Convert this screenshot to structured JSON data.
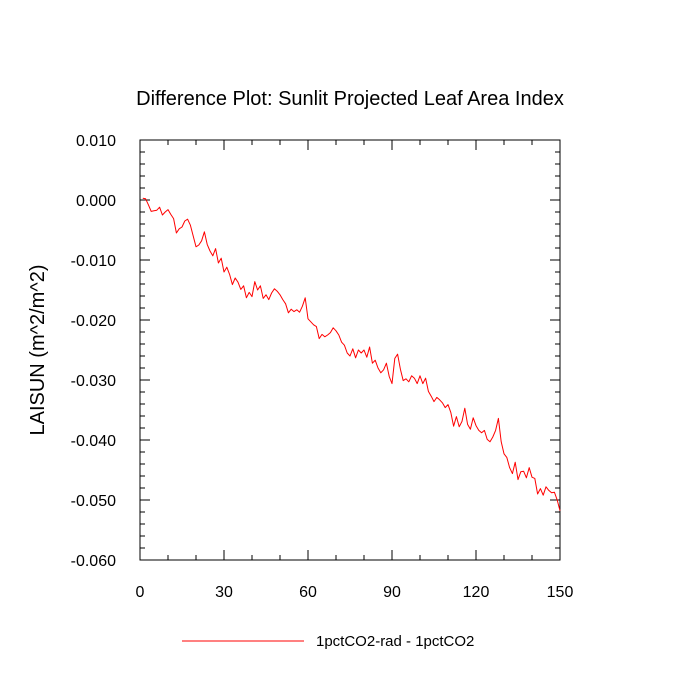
{
  "chart_data": {
    "type": "line",
    "title": "Difference Plot: Sunlit Projected Leaf Area Index",
    "ylabel": "LAISUN  (m^2/m^2)",
    "xlabel": "",
    "xlim": [
      0,
      150
    ],
    "ylim": [
      -0.06,
      0.01
    ],
    "xticks": [
      0,
      30,
      60,
      90,
      120,
      150
    ],
    "xtick_labels": [
      "0",
      "30",
      "60",
      "90",
      "120",
      "150"
    ],
    "yticks": [
      0.01,
      0.0,
      -0.01,
      -0.02,
      -0.03,
      -0.04,
      -0.05,
      -0.06
    ],
    "ytick_labels": [
      "0.010",
      "0.000",
      "-0.010",
      "-0.020",
      "-0.030",
      "-0.040",
      "-0.050",
      "-0.060"
    ],
    "grid": false,
    "legend_position": "bottom-center",
    "series": [
      {
        "name": "1pctCO2-rad - 1pctCO2",
        "color": "#ff0000",
        "x": [
          1,
          2,
          3,
          4,
          5,
          6,
          7,
          8,
          9,
          10,
          11,
          12,
          13,
          14,
          15,
          16,
          17,
          18,
          19,
          20,
          21,
          22,
          23,
          24,
          25,
          26,
          27,
          28,
          29,
          30,
          31,
          32,
          33,
          34,
          35,
          36,
          37,
          38,
          39,
          40,
          41,
          42,
          43,
          44,
          45,
          46,
          47,
          48,
          49,
          50,
          51,
          52,
          53,
          54,
          55,
          56,
          57,
          58,
          59,
          60,
          61,
          62,
          63,
          64,
          65,
          66,
          67,
          68,
          69,
          70,
          71,
          72,
          73,
          74,
          75,
          76,
          77,
          78,
          79,
          80,
          81,
          82,
          83,
          84,
          85,
          86,
          87,
          88,
          89,
          90,
          91,
          92,
          93,
          94,
          95,
          96,
          97,
          98,
          99,
          100,
          101,
          102,
          103,
          104,
          105,
          106,
          107,
          108,
          109,
          110,
          111,
          112,
          113,
          114,
          115,
          116,
          117,
          118,
          119,
          120,
          121,
          122,
          123,
          124,
          125,
          126,
          127,
          128,
          129,
          130,
          131,
          132,
          133,
          134,
          135,
          136,
          137,
          138,
          139,
          140,
          141,
          142,
          143,
          144,
          145,
          146,
          147,
          148,
          149,
          150
        ],
        "values": [
          0.0003,
          0.0002,
          -0.0008,
          -0.0019,
          -0.0018,
          -0.0017,
          -0.0012,
          -0.0025,
          -0.002,
          -0.0016,
          -0.0024,
          -0.0031,
          -0.0055,
          -0.0048,
          -0.0045,
          -0.0035,
          -0.0032,
          -0.0042,
          -0.006,
          -0.0078,
          -0.0075,
          -0.0068,
          -0.0053,
          -0.0074,
          -0.0085,
          -0.0093,
          -0.0081,
          -0.0105,
          -0.0097,
          -0.012,
          -0.0112,
          -0.0124,
          -0.0141,
          -0.013,
          -0.0137,
          -0.0149,
          -0.0143,
          -0.0163,
          -0.0154,
          -0.0161,
          -0.0136,
          -0.015,
          -0.0143,
          -0.0164,
          -0.0158,
          -0.0166,
          -0.0155,
          -0.0148,
          -0.0152,
          -0.0158,
          -0.0166,
          -0.0173,
          -0.0188,
          -0.0182,
          -0.0186,
          -0.0183,
          -0.0187,
          -0.0177,
          -0.0163,
          -0.0198,
          -0.0203,
          -0.0208,
          -0.0211,
          -0.0231,
          -0.0224,
          -0.0228,
          -0.0225,
          -0.0221,
          -0.0213,
          -0.0218,
          -0.0225,
          -0.0237,
          -0.0242,
          -0.0255,
          -0.026,
          -0.0248,
          -0.0263,
          -0.025,
          -0.0255,
          -0.025,
          -0.0262,
          -0.0245,
          -0.0272,
          -0.0267,
          -0.028,
          -0.0288,
          -0.0283,
          -0.0272,
          -0.0294,
          -0.0306,
          -0.0264,
          -0.0257,
          -0.0282,
          -0.0301,
          -0.0298,
          -0.0303,
          -0.0293,
          -0.0297,
          -0.0306,
          -0.0293,
          -0.0306,
          -0.0297,
          -0.0319,
          -0.0327,
          -0.0336,
          -0.0329,
          -0.0333,
          -0.0338,
          -0.0346,
          -0.0341,
          -0.0354,
          -0.0377,
          -0.0361,
          -0.0378,
          -0.0369,
          -0.0347,
          -0.0374,
          -0.0382,
          -0.0363,
          -0.0376,
          -0.0384,
          -0.0388,
          -0.0384,
          -0.0399,
          -0.0403,
          -0.0395,
          -0.0384,
          -0.0364,
          -0.0403,
          -0.0423,
          -0.0429,
          -0.0446,
          -0.0456,
          -0.0437,
          -0.0466,
          -0.0453,
          -0.0452,
          -0.0463,
          -0.0446,
          -0.0462,
          -0.0464,
          -0.049,
          -0.0481,
          -0.0492,
          -0.0478,
          -0.0484,
          -0.0488,
          -0.0487,
          -0.05,
          -0.0518
        ]
      }
    ]
  }
}
